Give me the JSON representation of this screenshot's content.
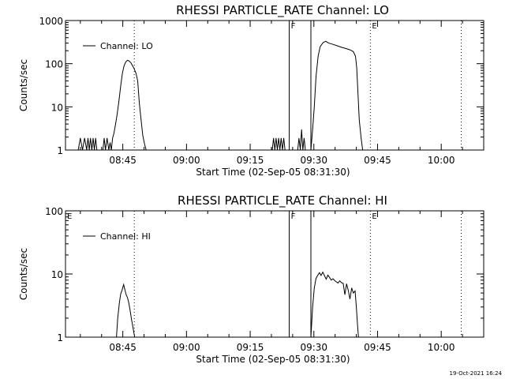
{
  "footer": {
    "timestamp": "19-Oct-2021 16:24"
  },
  "chart_data": [
    {
      "type": "line",
      "title": "RHESSI PARTICLE_RATE Channel: LO",
      "xlabel": "Start Time (02-Sep-05 08:31:30)",
      "ylabel": "Counts/sec",
      "x_unit": "minutes since 08:31:30",
      "xlim": [
        0,
        98.5
      ],
      "ylim": [
        1,
        1000
      ],
      "yscale": "log",
      "xticks": [
        {
          "value": 13.5,
          "label": "08:45"
        },
        {
          "value": 28.5,
          "label": "09:00"
        },
        {
          "value": 43.5,
          "label": "09:15"
        },
        {
          "value": 58.5,
          "label": "09:30"
        },
        {
          "value": 73.5,
          "label": "09:45"
        },
        {
          "value": 88.5,
          "label": "10:00"
        }
      ],
      "yticks": [
        {
          "value": 1,
          "label": "1"
        },
        {
          "value": 10,
          "label": "10"
        },
        {
          "value": 100,
          "label": "100"
        },
        {
          "value": 1000,
          "label": "1000"
        }
      ],
      "legend": {
        "label": "Channel: LO",
        "position": "top-left"
      },
      "grid": false,
      "flag_lines": [
        {
          "x": 52.7,
          "label": "F",
          "style": "solid"
        },
        {
          "x": 57.8,
          "label": "",
          "style": "solid"
        }
      ],
      "eclipse_lines": [
        {
          "x": 16.2,
          "label": "",
          "style": "dotted"
        },
        {
          "x": 71.8,
          "label": "E",
          "style": "dotted"
        },
        {
          "x": 93.2,
          "label": "",
          "style": "dotted"
        }
      ],
      "corner_flag": "",
      "series": [
        {
          "name": "Channel: LO",
          "segments": [
            [
              [
                3.0,
                1
              ],
              [
                3.5,
                1.9
              ],
              [
                4.0,
                1
              ],
              [
                4.5,
                1.9
              ],
              [
                5.0,
                1
              ],
              [
                5.3,
                1.9
              ],
              [
                5.6,
                1
              ],
              [
                5.9,
                1.9
              ],
              [
                6.2,
                1
              ],
              [
                6.5,
                1.9
              ],
              [
                6.8,
                1
              ],
              [
                7.1,
                1.9
              ],
              [
                7.4,
                1
              ]
            ],
            [
              [
                8.8,
                1
              ],
              [
                9.1,
                1.9
              ],
              [
                9.4,
                1
              ],
              [
                9.8,
                1.9
              ],
              [
                10.2,
                1
              ],
              [
                10.5,
                1.5
              ],
              [
                10.8,
                1
              ],
              [
                11.1,
                1.9
              ],
              [
                11.4,
                2.4
              ],
              [
                11.8,
                4
              ],
              [
                12.2,
                7
              ],
              [
                12.6,
                14
              ],
              [
                13.0,
                30
              ],
              [
                13.4,
                60
              ],
              [
                13.8,
                90
              ],
              [
                14.2,
                110
              ],
              [
                14.6,
                120
              ],
              [
                15.0,
                115
              ],
              [
                15.4,
                105
              ],
              [
                15.8,
                90
              ],
              [
                16.2,
                75
              ],
              [
                16.6,
                60
              ],
              [
                17.0,
                40
              ],
              [
                17.4,
                12
              ],
              [
                17.8,
                5
              ],
              [
                18.2,
                2.2
              ],
              [
                18.6,
                1.4
              ],
              [
                19.0,
                1
              ]
            ],
            [
              [
                48.7,
                1
              ],
              [
                49.0,
                1.9
              ],
              [
                49.3,
                1
              ],
              [
                49.6,
                1.9
              ],
              [
                49.9,
                1
              ],
              [
                50.2,
                1.9
              ],
              [
                50.5,
                1
              ],
              [
                50.8,
                1.9
              ],
              [
                51.1,
                1
              ],
              [
                51.4,
                1.9
              ],
              [
                51.7,
                1
              ]
            ],
            [
              [
                54.7,
                1
              ],
              [
                55.0,
                1.9
              ],
              [
                55.3,
                1
              ],
              [
                55.6,
                3
              ],
              [
                55.9,
                1
              ],
              [
                56.2,
                1.9
              ],
              [
                56.5,
                1
              ]
            ],
            [
              [
                57.8,
                1
              ],
              [
                58.2,
                3
              ],
              [
                58.6,
                10
              ],
              [
                59.0,
                50
              ],
              [
                59.5,
                150
              ],
              [
                60.0,
                250
              ],
              [
                60.7,
                310
              ],
              [
                61.3,
                330
              ],
              [
                62.0,
                300
              ],
              [
                63.0,
                280
              ],
              [
                64.0,
                260
              ],
              [
                65.0,
                240
              ],
              [
                66.0,
                225
              ],
              [
                67.0,
                210
              ],
              [
                67.8,
                190
              ],
              [
                68.3,
                150
              ],
              [
                68.6,
                80
              ],
              [
                68.9,
                20
              ],
              [
                69.2,
                5
              ],
              [
                69.6,
                2
              ],
              [
                70.0,
                1
              ]
            ]
          ]
        }
      ]
    },
    {
      "type": "line",
      "title": "RHESSI PARTICLE_RATE Channel: HI",
      "xlabel": "Start Time (02-Sep-05 08:31:30)",
      "ylabel": "Counts/sec",
      "x_unit": "minutes since 08:31:30",
      "xlim": [
        0,
        98.5
      ],
      "ylim": [
        1,
        100
      ],
      "yscale": "log",
      "xticks": [
        {
          "value": 13.5,
          "label": "08:45"
        },
        {
          "value": 28.5,
          "label": "09:00"
        },
        {
          "value": 43.5,
          "label": "09:15"
        },
        {
          "value": 58.5,
          "label": "09:30"
        },
        {
          "value": 73.5,
          "label": "09:45"
        },
        {
          "value": 88.5,
          "label": "10:00"
        }
      ],
      "yticks": [
        {
          "value": 1,
          "label": "1"
        },
        {
          "value": 10,
          "label": "10"
        },
        {
          "value": 100,
          "label": "100"
        }
      ],
      "legend": {
        "label": "Channel: HI",
        "position": "top-left"
      },
      "grid": false,
      "flag_lines": [
        {
          "x": 52.7,
          "label": "F",
          "style": "solid"
        },
        {
          "x": 57.8,
          "label": "",
          "style": "solid"
        }
      ],
      "eclipse_lines": [
        {
          "x": 16.2,
          "label": "",
          "style": "dotted"
        },
        {
          "x": 71.8,
          "label": "E",
          "style": "dotted"
        },
        {
          "x": 93.2,
          "label": "",
          "style": "dotted"
        }
      ],
      "corner_flag": "E",
      "series": [
        {
          "name": "Channel: HI",
          "segments": [
            [
              [
                12.0,
                1
              ],
              [
                12.3,
                2
              ],
              [
                12.7,
                3.5
              ],
              [
                13.0,
                4.8
              ],
              [
                13.3,
                5.5
              ],
              [
                13.7,
                6.8
              ],
              [
                14.0,
                5.6
              ],
              [
                14.3,
                4.7
              ],
              [
                14.6,
                4.2
              ],
              [
                14.9,
                3.5
              ],
              [
                15.2,
                2.7
              ],
              [
                15.5,
                2
              ],
              [
                15.9,
                1.4
              ],
              [
                16.3,
                1
              ]
            ],
            [
              [
                57.8,
                1
              ],
              [
                58.2,
                3
              ],
              [
                58.6,
                6
              ],
              [
                59.0,
                8.5
              ],
              [
                59.4,
                9.5
              ],
              [
                59.8,
                10.5
              ],
              [
                60.2,
                9.5
              ],
              [
                60.6,
                10.7
              ],
              [
                61.0,
                9.4
              ],
              [
                61.4,
                8.3
              ],
              [
                61.8,
                9.6
              ],
              [
                62.2,
                8.8
              ],
              [
                62.6,
                8
              ],
              [
                63.0,
                8.4
              ],
              [
                63.4,
                7.9
              ],
              [
                63.8,
                7.5
              ],
              [
                64.2,
                7.2
              ],
              [
                64.6,
                7.8
              ],
              [
                65.0,
                7.3
              ],
              [
                65.4,
                7.1
              ],
              [
                65.8,
                4.7
              ],
              [
                66.2,
                7
              ],
              [
                66.6,
                5.5
              ],
              [
                67.0,
                4
              ],
              [
                67.4,
                6
              ],
              [
                67.8,
                5
              ],
              [
                68.2,
                5.4
              ],
              [
                68.5,
                3
              ],
              [
                68.8,
                1.5
              ],
              [
                69.0,
                1
              ]
            ]
          ]
        }
      ]
    }
  ]
}
